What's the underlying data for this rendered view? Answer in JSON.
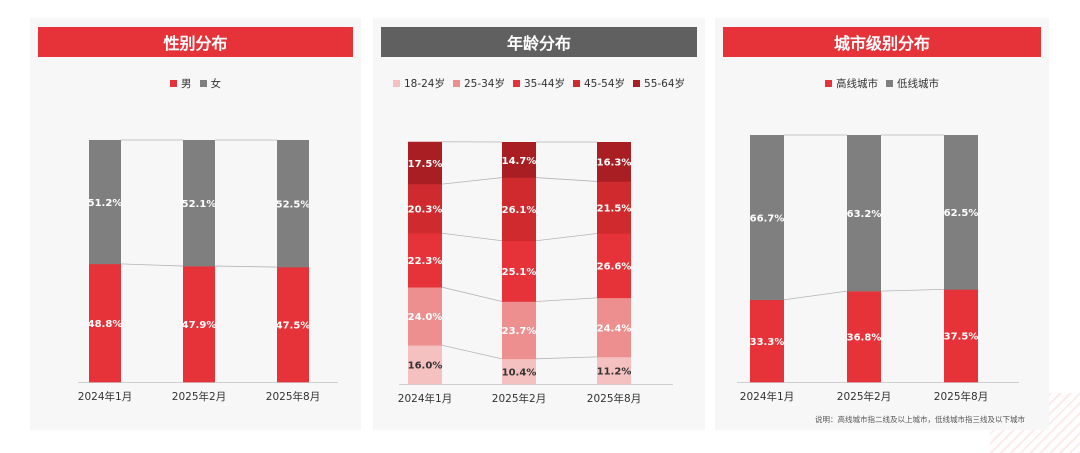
{
  "colors": {
    "red": "#e63339",
    "gray_title": "#606060",
    "gray_bar": "#7f7f7f",
    "age_1": "#f5c0c0",
    "age_2": "#ee8f8f",
    "age_3": "#e53339",
    "age_4": "#cf2a2e",
    "age_5": "#a81e22"
  },
  "chart_data": [
    {
      "type": "bar",
      "stacked": true,
      "title": "性别分布",
      "categories": [
        "2024年1月",
        "2025年2月",
        "2025年8月"
      ],
      "series": [
        {
          "name": "男",
          "values": [
            48.8,
            47.9,
            47.5
          ],
          "labels": [
            "48.8%",
            "47.9%",
            "47.5%"
          ]
        },
        {
          "name": "女",
          "values": [
            51.2,
            52.1,
            52.5
          ],
          "labels": [
            "51.2%",
            "52.1%",
            "52.5%"
          ]
        }
      ],
      "ylim": [
        0,
        100
      ],
      "legend": "top-center"
    },
    {
      "type": "bar",
      "stacked": true,
      "title": "年龄分布",
      "categories": [
        "2024年1月",
        "2025年2月",
        "2025年8月"
      ],
      "series": [
        {
          "name": "18-24岁",
          "values": [
            16.0,
            10.4,
            11.2
          ],
          "labels": [
            "16.0%",
            "10.4%",
            "11.2%"
          ]
        },
        {
          "name": "25-34岁",
          "values": [
            24.0,
            23.7,
            24.4
          ],
          "labels": [
            "24.0%",
            "23.7%",
            "24.4%"
          ]
        },
        {
          "name": "35-44岁",
          "values": [
            22.3,
            25.1,
            26.6
          ],
          "labels": [
            "22.3%",
            "25.1%",
            "26.6%"
          ]
        },
        {
          "name": "45-54岁",
          "values": [
            20.3,
            26.1,
            21.5
          ],
          "labels": [
            "20.3%",
            "26.1%",
            "21.5%"
          ]
        },
        {
          "name": "55-64岁",
          "values": [
            17.5,
            14.7,
            16.3
          ],
          "labels": [
            "17.5%",
            "14.7%",
            "16.3%"
          ]
        }
      ],
      "ylim": [
        0,
        100
      ],
      "legend": "top-center"
    },
    {
      "type": "bar",
      "stacked": true,
      "title": "城市级别分布",
      "categories": [
        "2024年1月",
        "2025年2月",
        "2025年8月"
      ],
      "series": [
        {
          "name": "高线城市",
          "values": [
            33.3,
            36.8,
            37.5
          ],
          "labels": [
            "33.3%",
            "36.8%",
            "37.5%"
          ]
        },
        {
          "name": "低线城市",
          "values": [
            66.7,
            63.2,
            62.5
          ],
          "labels": [
            "66.7%",
            "63.2%",
            "62.5%"
          ]
        }
      ],
      "ylim": [
        0,
        100
      ],
      "legend": "top-center",
      "note": "说明：高线城市指二线及以上城市，低线城市指三线及以下城市"
    }
  ]
}
